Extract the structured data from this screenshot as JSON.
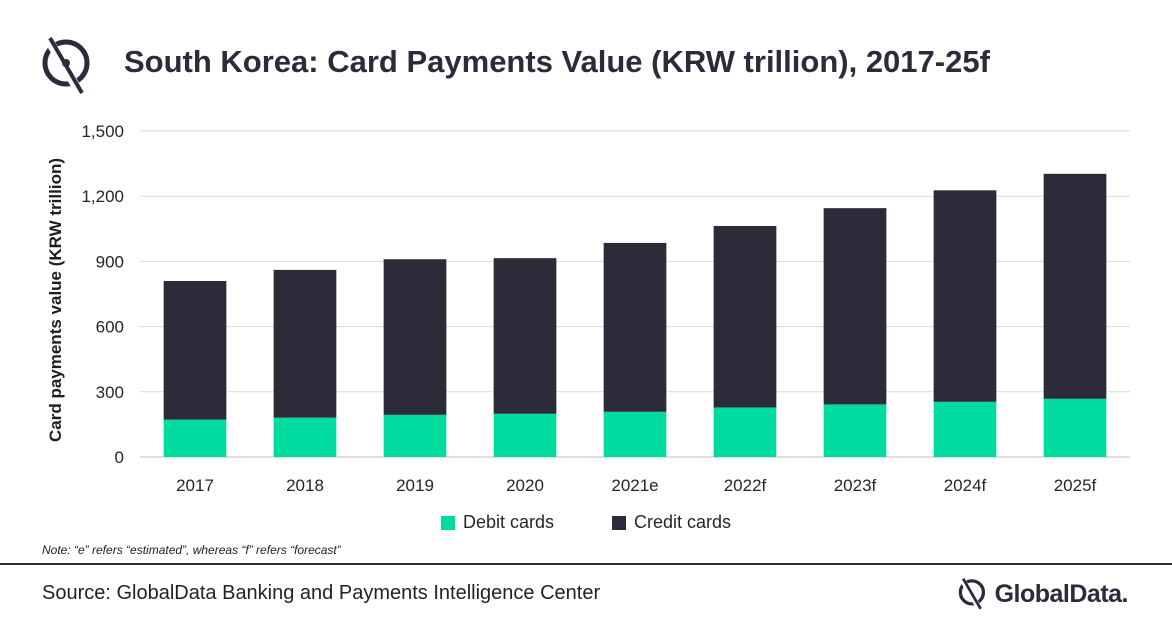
{
  "header": {
    "title": "South Korea: Card Payments Value (KRW trillion), 2017-25f"
  },
  "chart_data": {
    "type": "bar",
    "stacked": true,
    "categories": [
      "2017",
      "2018",
      "2019",
      "2020",
      "2021e",
      "2022f",
      "2023f",
      "2024f",
      "2025f"
    ],
    "series": [
      {
        "name": "Debit cards",
        "color": "#00dca0",
        "values": [
          172,
          181,
          194,
          199,
          208,
          228,
          242,
          254,
          268
        ]
      },
      {
        "name": "Credit cards",
        "color": "#2b2b3a",
        "values": [
          638,
          680,
          716,
          716,
          777,
          835,
          903,
          973,
          1035
        ]
      }
    ],
    "ylabel": "Card payments value (KRW trillion)",
    "ylim": [
      0,
      1500
    ],
    "yticks": [
      0,
      300,
      600,
      900,
      1200,
      1500
    ],
    "ytick_labels": [
      "0",
      "300",
      "600",
      "900",
      "1,200",
      "1,500"
    ],
    "grid": true,
    "legend_position": "bottom"
  },
  "legend": {
    "debit_label": "Debit cards",
    "credit_label": "Credit cards"
  },
  "note": "Note: “e” refers “estimated”, whereas “f” refers “forecast”",
  "footer": {
    "source": "Source: GlobalData Banking and Payments Intelligence Center",
    "brand": "GlobalData."
  }
}
